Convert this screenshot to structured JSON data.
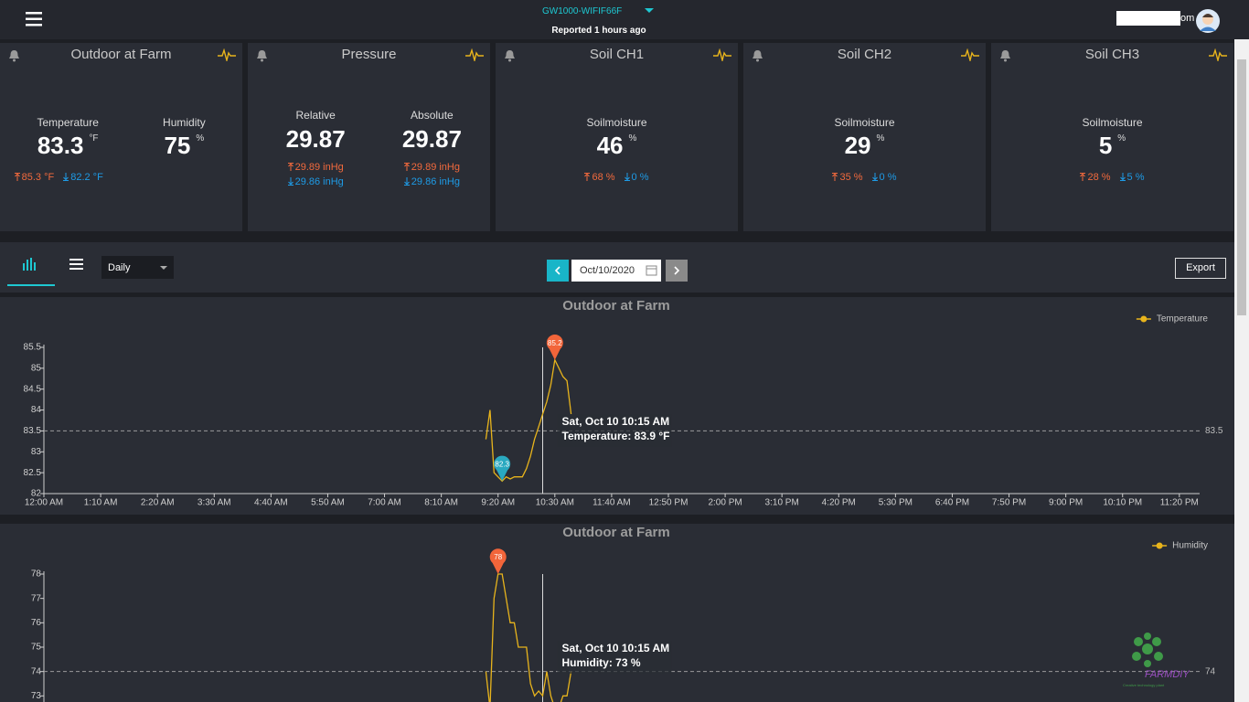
{
  "header": {
    "device": "GW1000-WIFIF66F",
    "reported": "Reported 1 hours ago",
    "user": "om"
  },
  "cards": [
    {
      "title": "Outdoor at Farm",
      "readings": [
        {
          "label": "Temperature",
          "value": 83.3,
          "unit": "°F",
          "high": "85.3 °F",
          "low": "82.2 °F"
        },
        {
          "label": "Humidity",
          "value": 75,
          "unit": "%"
        }
      ]
    },
    {
      "title": "Pressure",
      "readings": [
        {
          "label": "Relative",
          "value": 29.87,
          "high": "29.89 inHg",
          "low": "29.86 inHg"
        },
        {
          "label": "Absolute",
          "value": 29.87,
          "high": "29.89 inHg",
          "low": "29.86 inHg"
        }
      ]
    },
    {
      "title": "Soil CH1",
      "readings": [
        {
          "label": "Soilmoisture",
          "value": 46,
          "unit": "%",
          "high": "68 %",
          "low": "0 %"
        }
      ]
    },
    {
      "title": "Soil CH2",
      "readings": [
        {
          "label": "Soilmoisture",
          "value": 29,
          "unit": "%",
          "high": "35 %",
          "low": "0 %"
        }
      ]
    },
    {
      "title": "Soil CH3",
      "readings": [
        {
          "label": "Soilmoisture",
          "value": 5,
          "unit": "%",
          "high": "28 %",
          "low": "5 %"
        }
      ]
    }
  ],
  "toolbar": {
    "period": "Daily",
    "date": "Oct/10/2020",
    "export": "Export"
  },
  "chart_data": [
    {
      "type": "line",
      "title": "Outdoor at Farm",
      "x": [
        "9:05 AM",
        "9:10 AM",
        "9:15 AM",
        "9:20 AM",
        "9:25 AM",
        "9:30 AM",
        "9:35 AM",
        "9:40 AM",
        "9:45 AM",
        "9:50 AM",
        "9:55 AM",
        "10:00 AM",
        "10:05 AM",
        "10:10 AM",
        "10:15 AM",
        "10:20 AM",
        "10:25 AM",
        "10:30 AM",
        "10:35 AM",
        "10:40 AM",
        "10:45 AM",
        "10:50 AM"
      ],
      "series": [
        {
          "name": "Temperature",
          "color": "#e8b41c",
          "values": [
            83.3,
            84.0,
            82.5,
            82.4,
            82.3,
            82.4,
            82.35,
            82.4,
            82.4,
            82.4,
            82.6,
            82.9,
            83.3,
            83.6,
            83.9,
            84.2,
            84.6,
            85.2,
            85.0,
            84.8,
            84.7,
            83.9
          ]
        }
      ],
      "xlim": [
        "12:00 AM",
        "11:45 PM"
      ],
      "xticks": [
        "12:00 AM",
        "1:10 AM",
        "2:20 AM",
        "3:30 AM",
        "4:40 AM",
        "5:50 AM",
        "7:00 AM",
        "8:10 AM",
        "9:20 AM",
        "10:30 AM",
        "11:40 AM",
        "12:50 PM",
        "2:00 PM",
        "3:10 PM",
        "4:20 PM",
        "5:30 PM",
        "6:40 PM",
        "7:50 PM",
        "9:00 PM",
        "10:10 PM",
        "11:20 PM"
      ],
      "ylim": [
        82,
        85.5
      ],
      "yticks": [
        82,
        82.5,
        83,
        83.5,
        84,
        84.5,
        85,
        85.5
      ],
      "average": 83.5,
      "max_marker": {
        "x": "10:30 AM",
        "value": 85.2
      },
      "min_marker": {
        "x": "9:25 AM",
        "value": 82.3
      },
      "tooltip": {
        "title": "Sat, Oct 10 10:15 AM",
        "text": "Temperature: 83.9 °F"
      }
    },
    {
      "type": "line",
      "title": "Outdoor at Farm",
      "x": [
        "9:05 AM",
        "9:10 AM",
        "9:15 AM",
        "9:20 AM",
        "9:25 AM",
        "9:30 AM",
        "9:35 AM",
        "9:40 AM",
        "9:45 AM",
        "9:50 AM",
        "9:55 AM",
        "10:00 AM",
        "10:05 AM",
        "10:10 AM",
        "10:15 AM",
        "10:20 AM",
        "10:25 AM",
        "10:30 AM",
        "10:35 AM",
        "10:40 AM",
        "10:45 AM",
        "10:50 AM"
      ],
      "series": [
        {
          "name": "Humidity",
          "color": "#e8b41c",
          "values": [
            74,
            72.5,
            77,
            78,
            78,
            77,
            76,
            76,
            75,
            75,
            75,
            73.5,
            73,
            73.2,
            73,
            74,
            73,
            72.5,
            72.5,
            73,
            73,
            74
          ]
        }
      ],
      "xlim": [
        "12:00 AM",
        "11:45 PM"
      ],
      "ylim": [
        72,
        78
      ],
      "yticks": [
        73,
        74,
        75,
        76,
        77,
        78
      ],
      "average": 74,
      "max_marker": {
        "x": "9:20 AM",
        "value": 78
      },
      "tooltip": {
        "title": "Sat, Oct 10 10:15 AM",
        "text": "Humidity: 73 %"
      }
    }
  ],
  "logo": {
    "name": "FARMDIY",
    "tagline": "Creative technology plant"
  }
}
